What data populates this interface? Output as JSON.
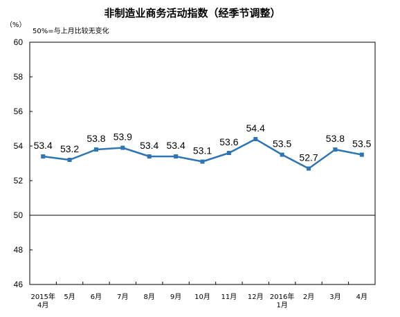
{
  "chart_data": {
    "type": "line",
    "title": "非制造业商务活动指数（经季节调整）",
    "unit_label": "（%）",
    "reference_note": "50%=与上月比较无变化",
    "categories": [
      [
        "2015年",
        "4月"
      ],
      [
        "5月"
      ],
      [
        "6月"
      ],
      [
        "7月"
      ],
      [
        "8月"
      ],
      [
        "9月"
      ],
      [
        "10月"
      ],
      [
        "11月"
      ],
      [
        "12月"
      ],
      [
        "2016年",
        "1月"
      ],
      [
        "2月"
      ],
      [
        "3月"
      ],
      [
        "4月"
      ]
    ],
    "series": [
      {
        "values": [
          53.4,
          53.2,
          53.8,
          53.9,
          53.4,
          53.4,
          53.1,
          53.6,
          54.4,
          53.5,
          52.7,
          53.8,
          53.5
        ]
      }
    ],
    "data_labels": [
      "53.4",
      "53.2",
      "53.8",
      "53.9",
      "53.4",
      "53.4",
      "53.1",
      "53.6",
      "54.4",
      "53.5",
      "52.7",
      "53.8",
      "53.5"
    ],
    "ylim": [
      46,
      60
    ],
    "yticks": [
      "46",
      "48",
      "50",
      "52",
      "54",
      "56",
      "58",
      "60"
    ],
    "reference_value": 50,
    "line_color": "#2e75b6",
    "grid": false,
    "legend": "none"
  }
}
